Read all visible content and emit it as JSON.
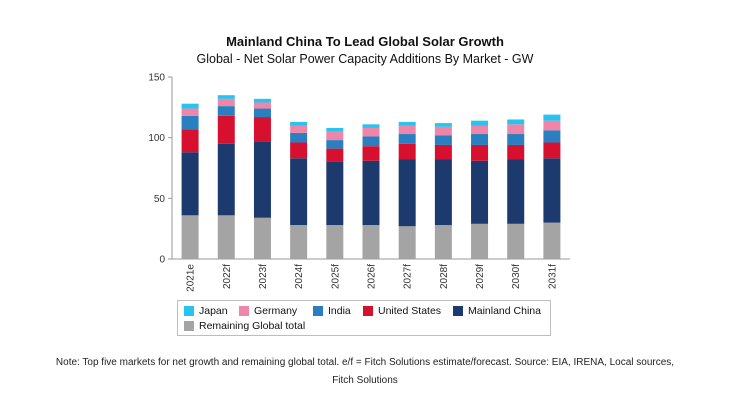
{
  "title": "Mainland China To Lead Global Solar Growth",
  "subtitle": "Global - Net Solar Power Capacity Additions By Market - GW",
  "note": {
    "line1": "Note: Top five markets for net growth and remaining global total. e/f = Fitch Solutions estimate/forecast. Source: EIA, IRENA, Local sources,",
    "line2": "Fitch Solutions"
  },
  "legend": [
    {
      "label": "Japan",
      "color": "#29c3f0"
    },
    {
      "label": "Germany",
      "color": "#ef85a8"
    },
    {
      "label": "India",
      "color": "#2a7fc0"
    },
    {
      "label": "United States",
      "color": "#d8102f"
    },
    {
      "label": "Mainland China",
      "color": "#1c3a6e"
    },
    {
      "label": "Remaining Global total",
      "color": "#a4a4a4"
    }
  ],
  "chart_data": {
    "type": "bar",
    "stacked": true,
    "categories": [
      "2021e",
      "2022f",
      "2023f",
      "2024f",
      "2025f",
      "2026f",
      "2027f",
      "2028f",
      "2029f",
      "2030f",
      "2031f"
    ],
    "ylim": [
      0,
      150
    ],
    "yticks": [
      0,
      50,
      100,
      150
    ],
    "series": [
      {
        "name": "Remaining Global total",
        "color": "#a4a4a4",
        "values": [
          36,
          36,
          34,
          28,
          28,
          28,
          27,
          28,
          29,
          29,
          30
        ]
      },
      {
        "name": "Mainland China",
        "color": "#1c3a6e",
        "values": [
          52,
          59,
          63,
          55,
          52,
          53,
          55,
          54,
          52,
          53,
          53
        ]
      },
      {
        "name": "United States",
        "color": "#d8102f",
        "values": [
          19,
          23,
          20,
          13,
          11,
          12,
          13,
          12,
          13,
          12,
          13
        ]
      },
      {
        "name": "India",
        "color": "#2a7fc0",
        "values": [
          11,
          8,
          7,
          8,
          7,
          8,
          8,
          8,
          9,
          9,
          10
        ]
      },
      {
        "name": "Germany",
        "color": "#ef85a8",
        "values": [
          6,
          6,
          5,
          6,
          7,
          7,
          7,
          7,
          7,
          8,
          8
        ]
      },
      {
        "name": "Japan",
        "color": "#29c3f0",
        "values": [
          4,
          3,
          3,
          3,
          3,
          3,
          3,
          3,
          4,
          4,
          5
        ]
      }
    ]
  }
}
